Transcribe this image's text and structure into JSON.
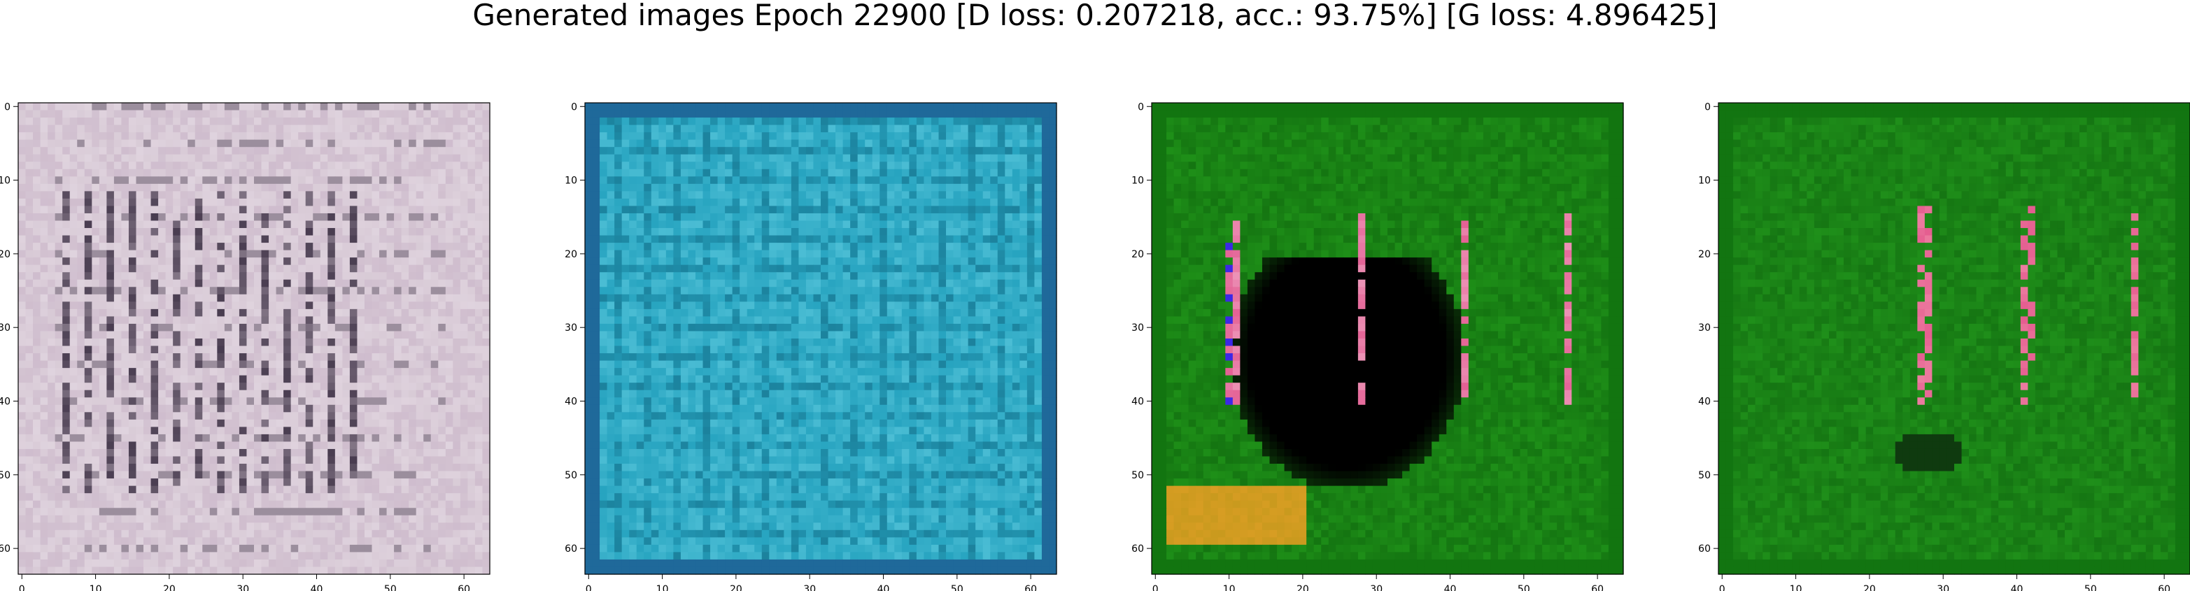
{
  "title": "Generated images Epoch 22900 [D loss: 0.207218, acc.: 93.75%] [G loss: 4.896425]",
  "chart_data": [
    {
      "type": "heatmap",
      "x_ticks": [
        "0",
        "10",
        "20",
        "30",
        "40",
        "50",
        "60"
      ],
      "y_ticks": [
        "0",
        "10",
        "20",
        "30",
        "40",
        "50",
        "60"
      ],
      "xlim": [
        -0.5,
        63.5
      ],
      "ylim": [
        63.5,
        -0.5
      ],
      "grid": false,
      "colors": {
        "base": "#d8cad6",
        "stripe": "#2a1e33",
        "frame": "#9a7aa8",
        "accent": "#c9b4c8"
      }
    },
    {
      "type": "heatmap",
      "x_ticks": [
        "0",
        "10",
        "20",
        "30",
        "40",
        "50",
        "60"
      ],
      "y_ticks": [
        "0",
        "10",
        "20",
        "30",
        "40",
        "50",
        "60"
      ],
      "xlim": [
        -0.5,
        63.5
      ],
      "ylim": [
        63.5,
        -0.5
      ],
      "grid": false,
      "colors": {
        "base": "#27a4c0",
        "stripe": "#10607a",
        "frame": "#1c4f8a",
        "accent": "#6fd6e8"
      }
    },
    {
      "type": "heatmap",
      "x_ticks": [
        "0",
        "10",
        "20",
        "30",
        "40",
        "50",
        "60"
      ],
      "y_ticks": [
        "0",
        "10",
        "20",
        "30",
        "40",
        "50",
        "60"
      ],
      "xlim": [
        -0.5,
        63.5
      ],
      "ylim": [
        63.5,
        -0.5
      ],
      "grid": false,
      "colors": {
        "base": "#1e8f18",
        "stripe": "#0a5a0a",
        "frame": "#0d6a0d",
        "accent": "#e04b86",
        "dark": "#000000",
        "warm": "#c99a1e"
      }
    },
    {
      "type": "heatmap",
      "x_ticks": [
        "0",
        "10",
        "20",
        "30",
        "40",
        "50",
        "60"
      ],
      "y_ticks": [
        "0",
        "10",
        "20",
        "30",
        "40",
        "50",
        "60"
      ],
      "xlim": [
        -0.5,
        63.5
      ],
      "ylim": [
        63.5,
        -0.5
      ],
      "grid": false,
      "colors": {
        "base": "#1f8f1a",
        "stripe": "#0b5c0b",
        "frame": "#0d6a0d",
        "accent": "#e04b86",
        "dark": "#0f3a0f"
      }
    }
  ]
}
